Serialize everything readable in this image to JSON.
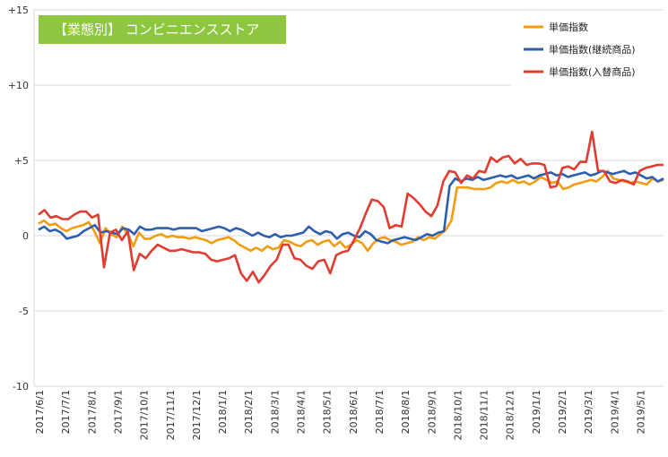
{
  "chart_data": {
    "type": "line",
    "title": "【業態別】 コンビニエンスストア",
    "title_bg_color": "#8DC63F",
    "ylim": [
      -10,
      15
    ],
    "yticks": [
      15,
      10,
      5,
      0,
      -5,
      -10
    ],
    "ytick_labels": [
      "+15",
      "+10",
      "+5",
      "0",
      "-5",
      "-10"
    ],
    "grid": "horizontal",
    "legend_position": "top-right",
    "x_ticks": [
      "2017/6/1",
      "2017/7/1",
      "2017/8/1",
      "2017/9/1",
      "2017/10/1",
      "2017/11/1",
      "2017/12/1",
      "2018/1/1",
      "2018/2/1",
      "2018/3/1",
      "2018/4/1",
      "2018/5/1",
      "2018/6/1",
      "2018/7/1",
      "2018/8/1",
      "2018/9/1",
      "2018/10/1",
      "2018/11/1",
      "2018/12/1",
      "2019/1/1",
      "2019/2/1",
      "2019/3/1",
      "2019/4/1",
      "2019/5/1"
    ],
    "series": [
      {
        "name": "単価指数",
        "color": "#F39C12",
        "values": [
          0.8,
          1.0,
          0.7,
          0.8,
          0.5,
          0.3,
          0.5,
          0.6,
          0.7,
          0.9,
          0.3,
          -0.5,
          0.5,
          0.1,
          -0.1,
          0.6,
          0.1,
          -0.7,
          0.2,
          -0.2,
          -0.2,
          0.0,
          0.1,
          -0.1,
          0.0,
          -0.1,
          -0.1,
          -0.2,
          -0.1,
          -0.2,
          -0.3,
          -0.5,
          -0.3,
          -0.2,
          -0.1,
          -0.3,
          -0.6,
          -0.8,
          -1.0,
          -0.8,
          -1.0,
          -0.7,
          -0.9,
          -0.8,
          -0.3,
          -0.4,
          -0.6,
          -0.7,
          -0.4,
          -0.3,
          -0.6,
          -0.4,
          -0.3,
          -0.7,
          -0.4,
          -0.8,
          -0.6,
          -0.3,
          -0.5,
          -1.0,
          -0.5,
          -0.2,
          -0.1,
          -0.3,
          -0.4,
          -0.6,
          -0.5,
          -0.4,
          -0.1,
          -0.3,
          -0.1,
          -0.2,
          0.1,
          0.4,
          1.0,
          3.2,
          3.2,
          3.2,
          3.1,
          3.1,
          3.1,
          3.2,
          3.5,
          3.6,
          3.5,
          3.7,
          3.5,
          3.6,
          3.4,
          3.6,
          3.9,
          3.7,
          3.5,
          3.6,
          3.1,
          3.2,
          3.4,
          3.5,
          3.6,
          3.7,
          3.6,
          3.9,
          4.3,
          3.8,
          3.7,
          3.6,
          3.5,
          3.6,
          3.5,
          3.4,
          3.8,
          3.6,
          3.7
        ]
      },
      {
        "name": "単価指数(継続商品)",
        "color": "#2E5FAE",
        "values": [
          0.4,
          0.6,
          0.3,
          0.4,
          0.2,
          -0.2,
          -0.1,
          0.0,
          0.3,
          0.5,
          0.7,
          0.2,
          0.3,
          0.2,
          0.1,
          0.5,
          0.4,
          0.1,
          0.6,
          0.4,
          0.4,
          0.5,
          0.5,
          0.5,
          0.4,
          0.5,
          0.5,
          0.5,
          0.5,
          0.3,
          0.4,
          0.5,
          0.6,
          0.5,
          0.3,
          0.5,
          0.4,
          0.2,
          0.0,
          0.2,
          0.0,
          -0.1,
          0.1,
          -0.1,
          0.0,
          0.0,
          0.1,
          0.2,
          0.6,
          0.3,
          0.1,
          0.3,
          0.2,
          -0.2,
          0.1,
          0.2,
          0.0,
          -0.1,
          0.3,
          0.1,
          -0.3,
          -0.4,
          -0.5,
          -0.3,
          -0.2,
          -0.1,
          -0.2,
          -0.3,
          -0.1,
          0.1,
          0.0,
          0.2,
          0.3,
          3.3,
          3.8,
          3.6,
          3.8,
          3.7,
          3.9,
          3.7,
          3.8,
          3.9,
          4.0,
          3.9,
          4.0,
          3.8,
          3.9,
          4.0,
          3.8,
          4.0,
          4.1,
          4.2,
          4.0,
          4.1,
          3.9,
          4.0,
          4.1,
          4.2,
          4.0,
          4.1,
          4.3,
          4.2,
          4.1,
          4.2,
          4.3,
          4.1,
          4.2,
          4.0,
          3.8,
          3.9,
          3.6,
          3.8
        ]
      },
      {
        "name": "単価指数(入替商品)",
        "color": "#E03C31",
        "values": [
          1.4,
          1.7,
          1.2,
          1.3,
          1.1,
          1.1,
          1.4,
          1.6,
          1.6,
          1.2,
          1.4,
          -2.1,
          0.2,
          0.4,
          -0.3,
          0.3,
          -2.3,
          -1.2,
          -1.5,
          -1.0,
          -0.6,
          -0.8,
          -1.0,
          -1.0,
          -0.9,
          -1.0,
          -1.1,
          -1.1,
          -1.2,
          -1.6,
          -1.7,
          -1.6,
          -1.5,
          -1.3,
          -2.5,
          -3.0,
          -2.4,
          -3.1,
          -2.6,
          -2.0,
          -1.6,
          -0.6,
          -0.6,
          -1.5,
          -1.6,
          -2.0,
          -2.2,
          -1.7,
          -1.6,
          -2.5,
          -1.3,
          -1.1,
          -1.0,
          -0.3,
          0.5,
          1.5,
          2.4,
          2.3,
          1.9,
          0.5,
          0.7,
          0.6,
          2.8,
          2.5,
          2.1,
          1.6,
          1.3,
          2.0,
          3.6,
          4.3,
          4.2,
          3.5,
          4.0,
          3.8,
          4.3,
          4.2,
          5.2,
          4.9,
          5.2,
          5.3,
          4.8,
          5.1,
          4.7,
          4.8,
          4.8,
          4.7,
          3.2,
          3.3,
          4.5,
          4.6,
          4.4,
          4.9,
          4.9,
          6.9,
          4.3,
          4.3,
          3.6,
          3.5,
          3.7,
          3.6,
          3.4,
          4.3,
          4.5,
          4.6,
          4.7,
          4.7
        ]
      }
    ]
  }
}
